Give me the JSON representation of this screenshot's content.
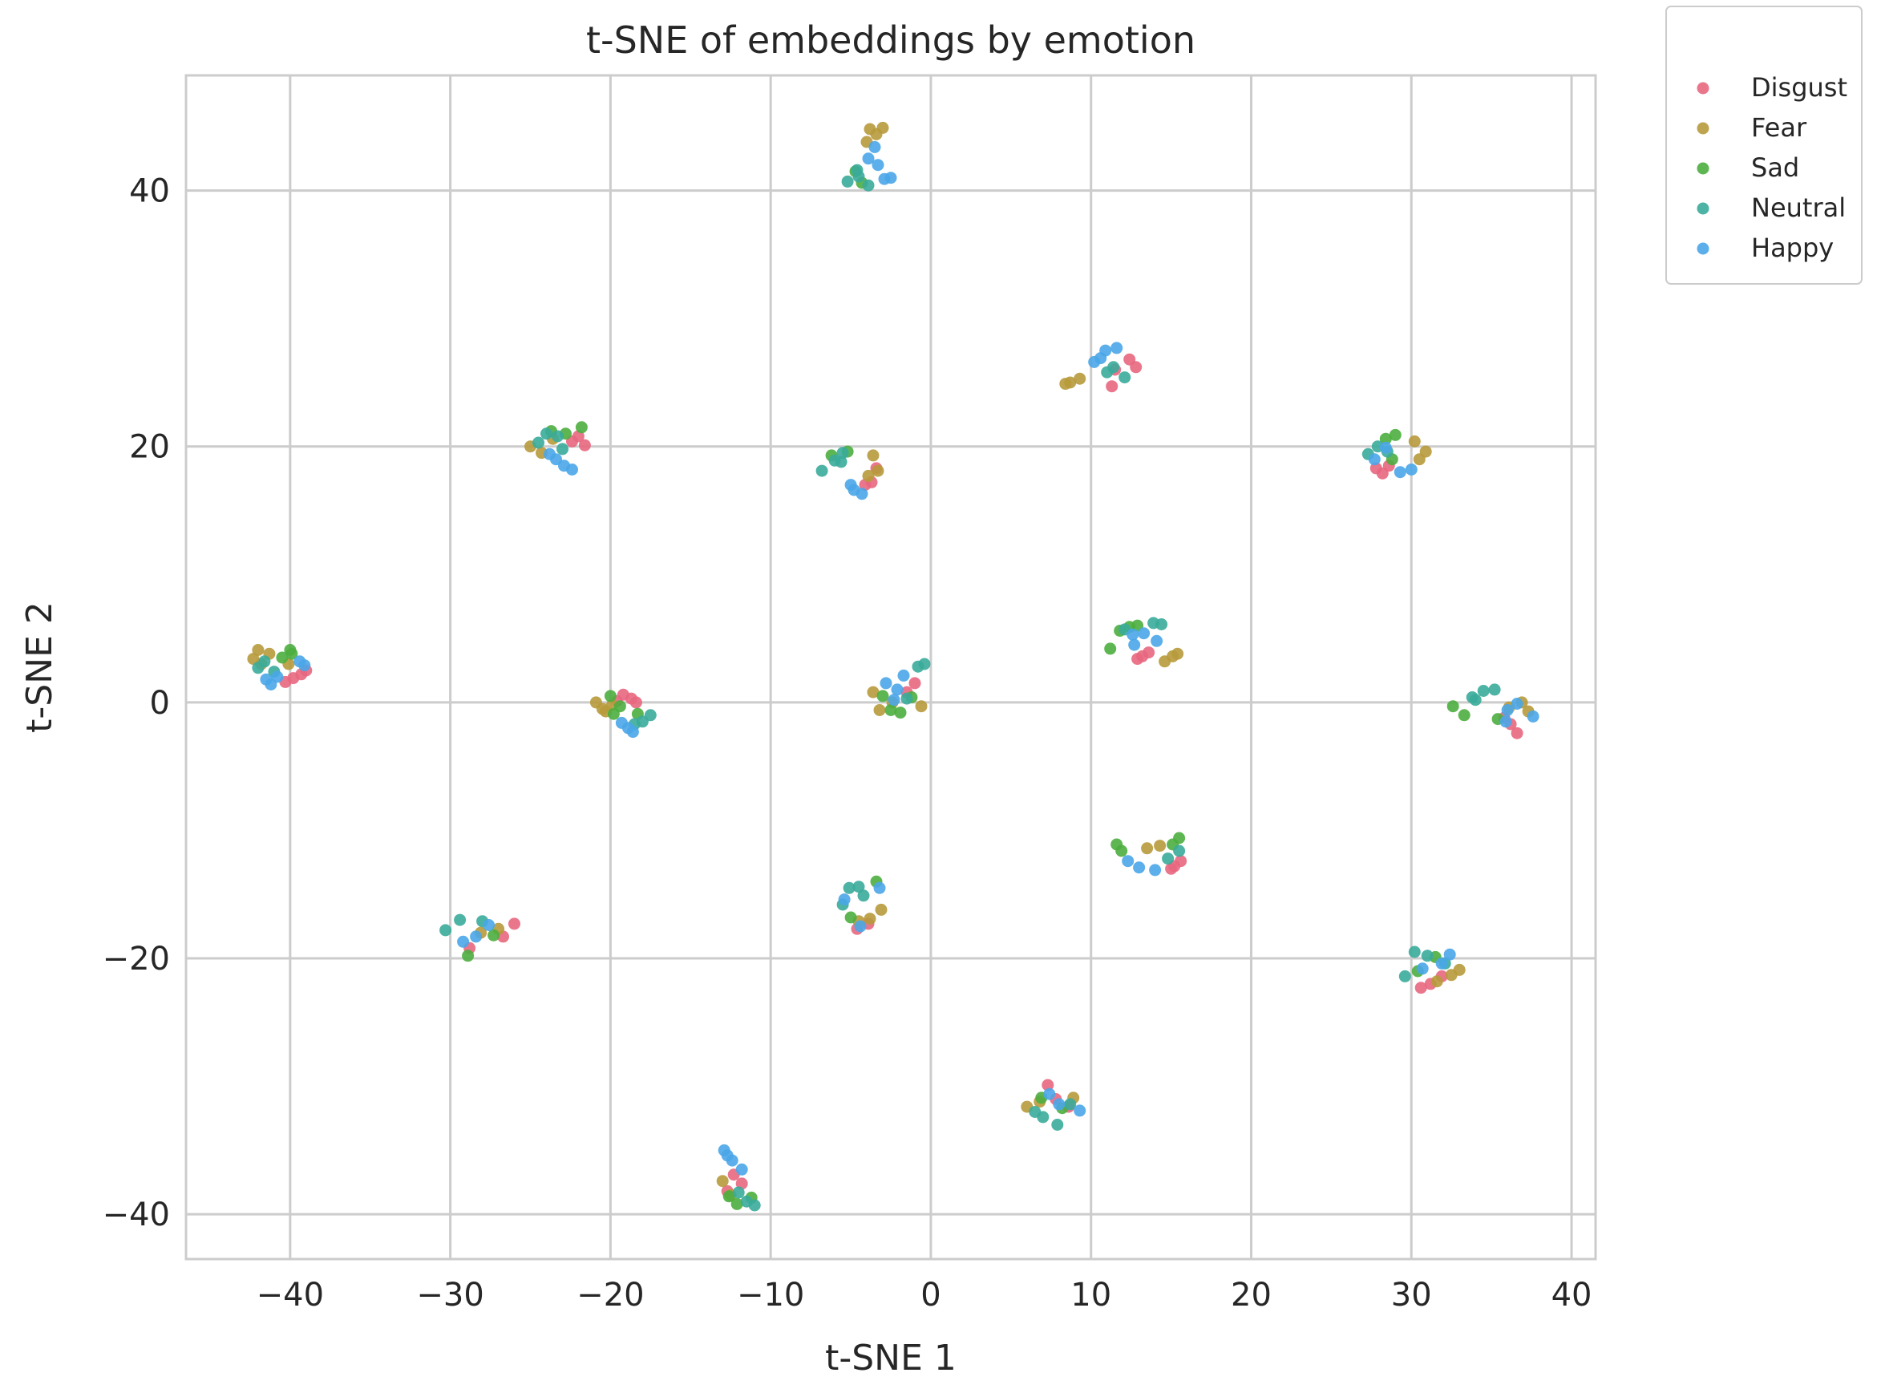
{
  "chart_data": {
    "type": "scatter",
    "title": "t-SNE of embeddings by emotion",
    "xlabel": "t-SNE 1",
    "ylabel": "t-SNE 2",
    "xlim": [
      -46.5,
      41.5
    ],
    "ylim": [
      -43.5,
      49.0
    ],
    "xticks": [
      -40,
      -30,
      -20,
      -10,
      0,
      10,
      20,
      30,
      40
    ],
    "yticks": [
      -40,
      -20,
      0,
      20,
      40
    ],
    "xtick_labels": [
      "−40",
      "−30",
      "−20",
      "−10",
      "0",
      "10",
      "20",
      "30",
      "40"
    ],
    "ytick_labels": [
      "−40",
      "−20",
      "0",
      "20",
      "40"
    ],
    "grid": true,
    "legend_position": "outside-top-right",
    "series": [
      {
        "name": "Disgust",
        "color": "#e8677f",
        "points": [
          [
            -39.8,
            1.9
          ],
          [
            -39.3,
            2.2
          ],
          [
            -40.3,
            1.6
          ],
          [
            -39.0,
            2.5
          ],
          [
            -19.2,
            0.6
          ],
          [
            -18.7,
            0.3
          ],
          [
            -19.6,
            0.1
          ],
          [
            -18.4,
            0.0
          ],
          [
            -22.0,
            20.8
          ],
          [
            -21.6,
            20.1
          ],
          [
            -22.4,
            20.4
          ],
          [
            -3.4,
            18.3
          ],
          [
            -3.7,
            17.2
          ],
          [
            -4.1,
            17.0
          ],
          [
            -1.0,
            1.5
          ],
          [
            -1.5,
            0.8
          ],
          [
            11.5,
            26.0
          ],
          [
            12.4,
            26.8
          ],
          [
            11.3,
            24.7
          ],
          [
            12.8,
            26.2
          ],
          [
            13.2,
            3.6
          ],
          [
            13.6,
            3.9
          ],
          [
            12.9,
            3.4
          ],
          [
            27.8,
            18.3
          ],
          [
            28.2,
            17.9
          ],
          [
            28.6,
            18.5
          ],
          [
            36.2,
            -1.7
          ],
          [
            36.6,
            -2.4
          ],
          [
            35.8,
            -1.2
          ],
          [
            15.2,
            -12.8
          ],
          [
            15.6,
            -12.4
          ],
          [
            15.0,
            -13.0
          ],
          [
            -3.9,
            -17.3
          ],
          [
            -4.6,
            -17.7
          ],
          [
            -26.0,
            -17.3
          ],
          [
            -26.7,
            -18.3
          ],
          [
            -28.8,
            -19.2
          ],
          [
            -12.3,
            -36.9
          ],
          [
            -11.8,
            -37.6
          ],
          [
            -12.7,
            -38.2
          ],
          [
            7.3,
            -29.9
          ],
          [
            8.6,
            -31.6
          ],
          [
            7.8,
            -31.0
          ],
          [
            31.2,
            -22.0
          ],
          [
            30.6,
            -22.3
          ],
          [
            31.9,
            -21.4
          ]
        ]
      },
      {
        "name": "Fear",
        "color": "#b79a3b",
        "points": [
          [
            -42.3,
            3.4
          ],
          [
            -42.0,
            4.1
          ],
          [
            -41.3,
            3.8
          ],
          [
            -40.1,
            3.0
          ],
          [
            -41.8,
            3.0
          ],
          [
            -20.5,
            -0.5
          ],
          [
            -20.9,
            0.0
          ],
          [
            -19.9,
            -0.2
          ],
          [
            -20.3,
            -0.7
          ],
          [
            -25.0,
            20.0
          ],
          [
            -24.3,
            19.5
          ],
          [
            -23.6,
            20.6
          ],
          [
            -3.6,
            19.3
          ],
          [
            -3.3,
            18.1
          ],
          [
            -3.9,
            17.7
          ],
          [
            -3.8,
            44.8
          ],
          [
            -3.4,
            44.4
          ],
          [
            -3.0,
            44.9
          ],
          [
            -4.0,
            43.8
          ],
          [
            -2.4,
            0.0
          ],
          [
            -3.2,
            -0.6
          ],
          [
            -3.6,
            0.8
          ],
          [
            -0.6,
            -0.3
          ],
          [
            8.7,
            25.0
          ],
          [
            9.3,
            25.3
          ],
          [
            8.4,
            24.9
          ],
          [
            14.6,
            3.2
          ],
          [
            15.4,
            3.8
          ],
          [
            15.1,
            3.6
          ],
          [
            30.2,
            20.4
          ],
          [
            30.9,
            19.6
          ],
          [
            30.5,
            19.0
          ],
          [
            36.9,
            0.0
          ],
          [
            37.3,
            -0.7
          ],
          [
            36.1,
            -0.4
          ],
          [
            13.5,
            -11.4
          ],
          [
            14.3,
            -11.2
          ],
          [
            -3.8,
            -16.9
          ],
          [
            -3.1,
            -16.2
          ],
          [
            -4.5,
            -17.1
          ],
          [
            -27.0,
            -17.7
          ],
          [
            -28.1,
            -18.0
          ],
          [
            -13.0,
            -37.4
          ],
          [
            -12.5,
            -38.5
          ],
          [
            6.0,
            -31.6
          ],
          [
            6.8,
            -31.2
          ],
          [
            8.9,
            -30.9
          ],
          [
            32.5,
            -21.3
          ],
          [
            33.0,
            -20.9
          ],
          [
            31.6,
            -21.8
          ]
        ]
      },
      {
        "name": "Sad",
        "color": "#4cae3f",
        "points": [
          [
            -40.0,
            4.1
          ],
          [
            -40.5,
            3.5
          ],
          [
            -39.9,
            3.8
          ],
          [
            -20.0,
            0.5
          ],
          [
            -19.4,
            -0.3
          ],
          [
            -18.3,
            -0.9
          ],
          [
            -19.8,
            -0.9
          ],
          [
            -23.7,
            21.2
          ],
          [
            -21.8,
            21.5
          ],
          [
            -22.8,
            21.0
          ],
          [
            -6.2,
            19.3
          ],
          [
            -5.2,
            19.6
          ],
          [
            -4.3,
            40.6
          ],
          [
            -4.7,
            41.5
          ],
          [
            -3.0,
            0.5
          ],
          [
            -1.9,
            -0.8
          ],
          [
            -2.5,
            -0.6
          ],
          [
            -1.2,
            0.4
          ],
          [
            11.8,
            5.6
          ],
          [
            12.4,
            5.9
          ],
          [
            11.2,
            4.2
          ],
          [
            12.9,
            6.0
          ],
          [
            28.4,
            20.6
          ],
          [
            29.0,
            20.9
          ],
          [
            28.8,
            19.0
          ],
          [
            32.6,
            -0.3
          ],
          [
            33.3,
            -1.0
          ],
          [
            35.4,
            -1.3
          ],
          [
            11.6,
            -11.1
          ],
          [
            11.9,
            -11.6
          ],
          [
            15.5,
            -10.6
          ],
          [
            15.1,
            -11.1
          ],
          [
            -3.4,
            -14.0
          ],
          [
            -5.0,
            -16.8
          ],
          [
            -28.9,
            -19.8
          ],
          [
            -27.3,
            -18.2
          ],
          [
            -11.2,
            -38.7
          ],
          [
            -12.1,
            -39.2
          ],
          [
            -12.6,
            -38.6
          ],
          [
            6.9,
            -30.9
          ],
          [
            8.2,
            -31.7
          ],
          [
            31.5,
            -19.9
          ],
          [
            30.4,
            -21.0
          ]
        ]
      },
      {
        "name": "Neutral",
        "color": "#3aab9a",
        "points": [
          [
            -42.0,
            2.7
          ],
          [
            -41.6,
            3.2
          ],
          [
            -41.0,
            2.4
          ],
          [
            -18.0,
            -1.5
          ],
          [
            -17.5,
            -1.0
          ],
          [
            -18.5,
            -1.7
          ],
          [
            -24.0,
            21.0
          ],
          [
            -23.3,
            20.8
          ],
          [
            -24.5,
            20.3
          ],
          [
            -23.0,
            19.8
          ],
          [
            -5.5,
            19.5
          ],
          [
            -6.0,
            18.9
          ],
          [
            -6.8,
            18.1
          ],
          [
            -5.6,
            18.8
          ],
          [
            -4.6,
            41.6
          ],
          [
            -5.2,
            40.7
          ],
          [
            -3.9,
            40.4
          ],
          [
            -4.5,
            41.1
          ],
          [
            -0.4,
            3.0
          ],
          [
            -0.8,
            2.8
          ],
          [
            -1.5,
            0.3
          ],
          [
            11.4,
            26.2
          ],
          [
            12.1,
            25.4
          ],
          [
            11.0,
            25.8
          ],
          [
            13.9,
            6.2
          ],
          [
            14.4,
            6.1
          ],
          [
            12.1,
            5.7
          ],
          [
            27.3,
            19.4
          ],
          [
            27.9,
            20.0
          ],
          [
            28.5,
            19.6
          ],
          [
            33.8,
            0.4
          ],
          [
            34.5,
            0.9
          ],
          [
            35.2,
            1.0
          ],
          [
            34.0,
            0.2
          ],
          [
            14.8,
            -12.2
          ],
          [
            15.5,
            -11.6
          ],
          [
            -5.1,
            -14.5
          ],
          [
            -4.5,
            -14.4
          ],
          [
            -5.5,
            -15.8
          ],
          [
            -4.2,
            -15.1
          ],
          [
            -30.3,
            -17.8
          ],
          [
            -29.4,
            -17.0
          ],
          [
            -28.0,
            -17.1
          ],
          [
            -11.5,
            -39.0
          ],
          [
            -11.0,
            -39.3
          ],
          [
            -12.0,
            -38.3
          ],
          [
            7.0,
            -32.4
          ],
          [
            7.9,
            -33.0
          ],
          [
            8.7,
            -31.4
          ],
          [
            6.5,
            -32.0
          ],
          [
            30.2,
            -19.5
          ],
          [
            31.0,
            -19.8
          ],
          [
            29.6,
            -21.4
          ],
          [
            32.1,
            -20.4
          ]
        ]
      },
      {
        "name": "Happy",
        "color": "#4aa6e8",
        "points": [
          [
            -41.2,
            1.4
          ],
          [
            -40.8,
            2.0
          ],
          [
            -39.1,
            2.9
          ],
          [
            -39.4,
            3.2
          ],
          [
            -41.5,
            1.8
          ],
          [
            -18.9,
            -2.0
          ],
          [
            -19.3,
            -1.6
          ],
          [
            -18.6,
            -2.3
          ],
          [
            -23.4,
            19.0
          ],
          [
            -22.9,
            18.5
          ],
          [
            -22.4,
            18.2
          ],
          [
            -23.8,
            19.4
          ],
          [
            -4.8,
            16.6
          ],
          [
            -4.3,
            16.3
          ],
          [
            -5.0,
            17.0
          ],
          [
            -3.5,
            43.4
          ],
          [
            -3.9,
            42.5
          ],
          [
            -2.5,
            41.0
          ],
          [
            -3.3,
            42.0
          ],
          [
            -2.9,
            40.9
          ],
          [
            -2.1,
            1.0
          ],
          [
            -1.7,
            2.1
          ],
          [
            -2.8,
            1.5
          ],
          [
            -2.3,
            0.2
          ],
          [
            10.2,
            26.6
          ],
          [
            10.9,
            27.5
          ],
          [
            11.6,
            27.7
          ],
          [
            10.6,
            26.9
          ],
          [
            12.6,
            5.3
          ],
          [
            13.3,
            5.4
          ],
          [
            14.1,
            4.8
          ],
          [
            12.7,
            4.5
          ],
          [
            28.4,
            19.9
          ],
          [
            29.3,
            18.0
          ],
          [
            30.0,
            18.2
          ],
          [
            27.7,
            19.0
          ],
          [
            36.0,
            -0.6
          ],
          [
            36.6,
            -0.1
          ],
          [
            37.6,
            -1.1
          ],
          [
            35.9,
            -1.5
          ],
          [
            12.3,
            -12.4
          ],
          [
            13.0,
            -12.9
          ],
          [
            14.0,
            -13.1
          ],
          [
            -4.4,
            -17.5
          ],
          [
            -3.2,
            -14.5
          ],
          [
            -5.4,
            -15.4
          ],
          [
            -28.4,
            -18.3
          ],
          [
            -27.6,
            -17.4
          ],
          [
            -29.2,
            -18.7
          ],
          [
            -12.9,
            -35.0
          ],
          [
            -12.4,
            -35.8
          ],
          [
            -11.8,
            -36.5
          ],
          [
            -12.7,
            -35.4
          ],
          [
            9.3,
            -31.9
          ],
          [
            8.0,
            -31.4
          ],
          [
            7.4,
            -30.6
          ],
          [
            32.4,
            -19.7
          ],
          [
            31.9,
            -20.4
          ],
          [
            30.7,
            -20.8
          ]
        ]
      }
    ]
  }
}
